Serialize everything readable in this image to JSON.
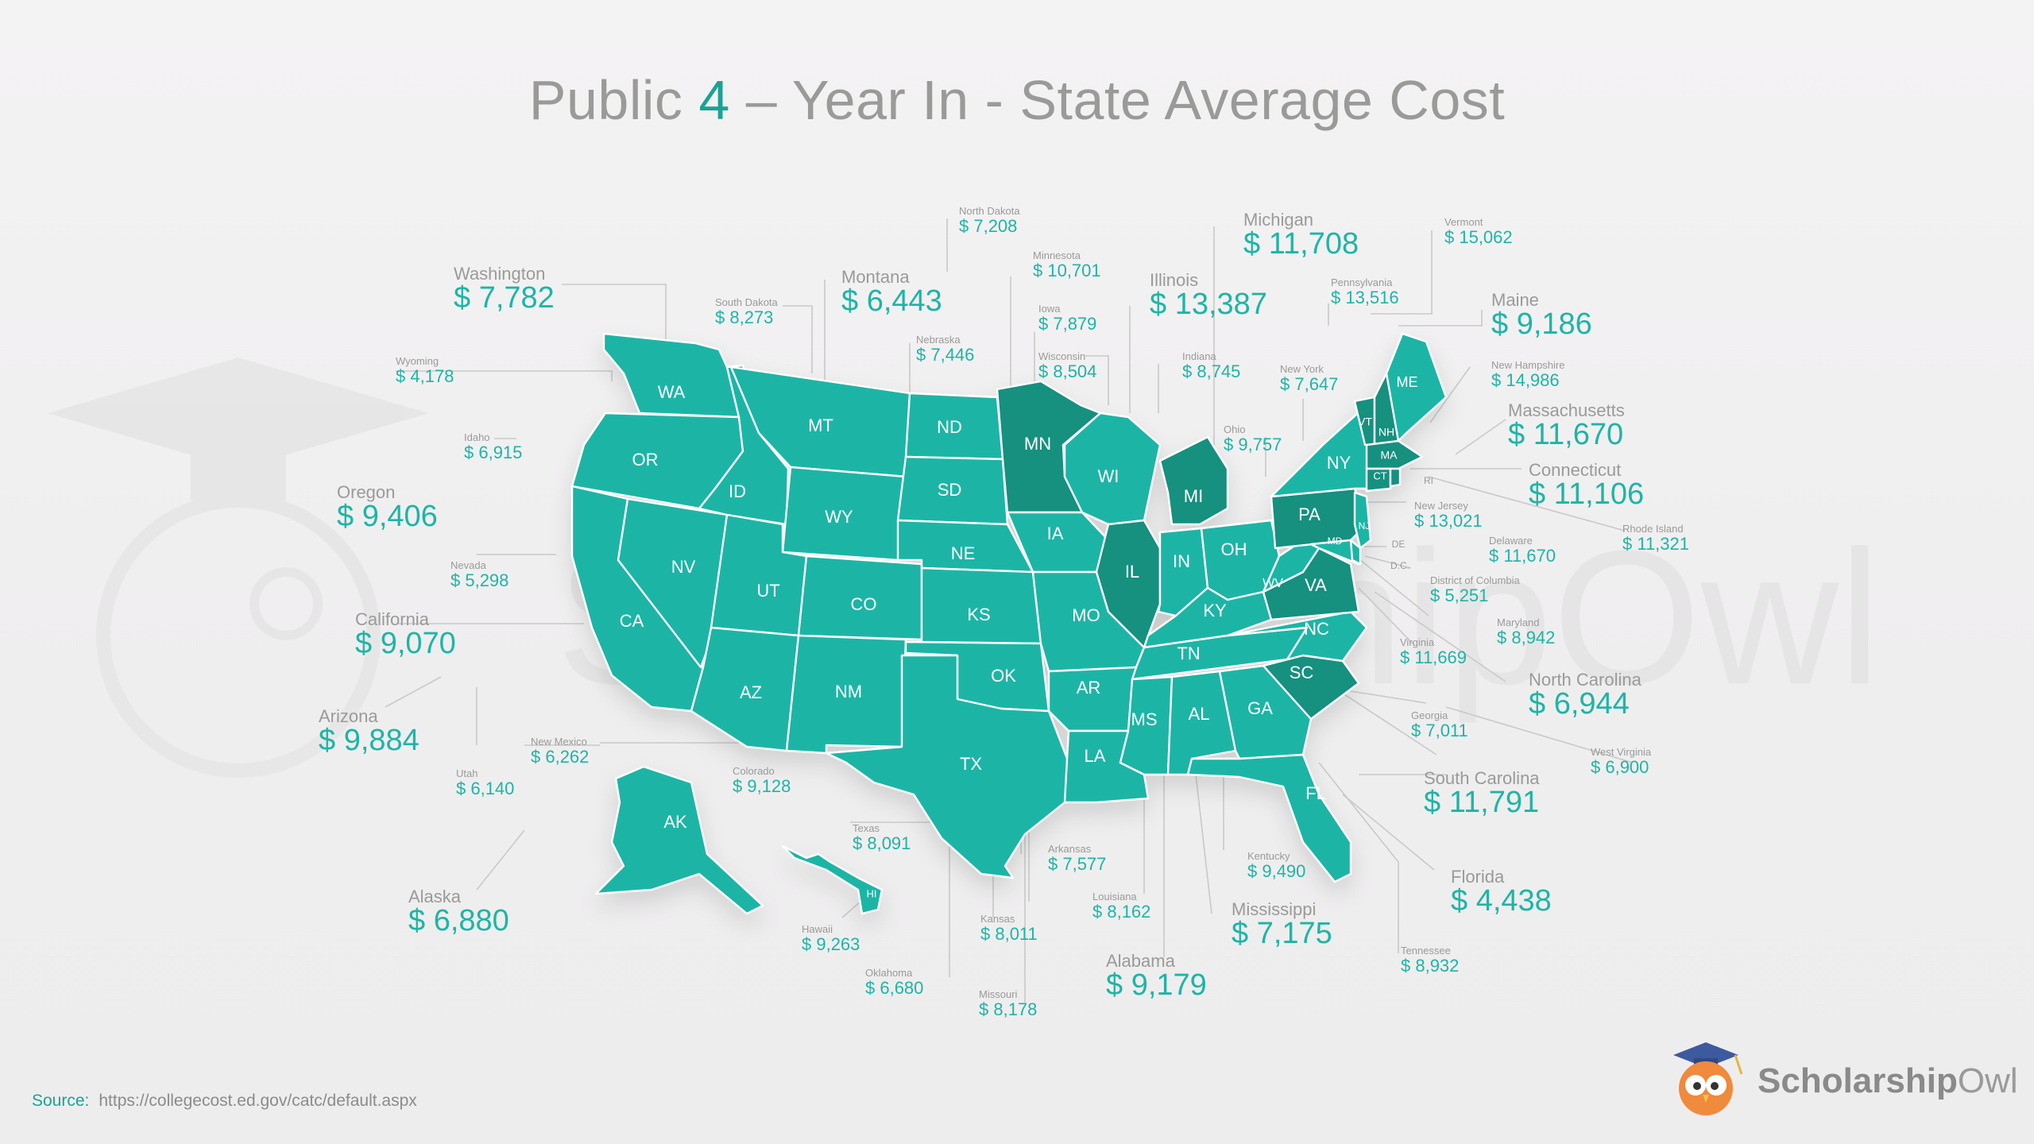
{
  "title": {
    "prefix": "Public ",
    "accent": "4",
    "suffix": " – Year In - State Average Cost"
  },
  "source": {
    "label": "Source:",
    "url": "https://collegecost.ed.gov/catc/default.aspx"
  },
  "brand": {
    "word1": "Scholarship",
    "word2": "Owl"
  },
  "colors": {
    "base": "#1db5a5",
    "dark": "#16907f",
    "text": "#9a9a99",
    "accent": "#1aa394"
  },
  "watermark_text": "ScholarshipOwl",
  "icons": {
    "brand_logo": "owl-mascot-with-graduation-cap",
    "watermark": "owl-graduation-cap-watermark"
  },
  "states": {
    "WA": "WA",
    "OR": "OR",
    "CA": "CA",
    "NV": "NV",
    "ID": "ID",
    "MT": "MT",
    "WY": "WY",
    "UT": "UT",
    "AZ": "AZ",
    "CO": "CO",
    "NM": "NM",
    "ND": "ND",
    "SD": "SD",
    "NE": "NE",
    "KS": "KS",
    "OK": "OK",
    "TX": "TX",
    "MN": "MN",
    "IA": "IA",
    "MO": "MO",
    "AR": "AR",
    "LA": "LA",
    "WI": "WI",
    "IL": "IL",
    "MI": "MI",
    "IN": "IN",
    "OH": "OH",
    "KY": "KY",
    "TN": "TN",
    "MS": "MS",
    "AL": "AL",
    "GA": "GA",
    "FL": "FL",
    "SC": "SC",
    "NC": "NC",
    "VA": "VA",
    "WV": "WV",
    "PA": "PA",
    "NY": "NY",
    "VT": "VT",
    "NH": "NH",
    "ME": "ME",
    "MA": "MA",
    "CT": "CT",
    "RI": "RI",
    "NJ": "NJ",
    "DE": "DE",
    "MD": "MD",
    "DC": "D.C.",
    "AK": "AK",
    "HI": "HI"
  },
  "callouts": [
    {
      "id": "north-dakota",
      "name": "North Dakota",
      "value": "$ 7,208",
      "size": "small"
    },
    {
      "id": "minnesota",
      "name": "Minnesota",
      "value": "$ 10,701",
      "size": "small"
    },
    {
      "id": "michigan",
      "name": "Michigan",
      "value": "$ 11,708",
      "size": "big"
    },
    {
      "id": "vermont",
      "name": "Vermont",
      "value": "$ 15,062",
      "size": "small"
    },
    {
      "id": "washington",
      "name": "Washington",
      "value": "$ 7,782",
      "size": "big"
    },
    {
      "id": "south-dakota",
      "name": "South Dakota",
      "value": "$ 8,273",
      "size": "small"
    },
    {
      "id": "montana",
      "name": "Montana",
      "value": "$ 6,443",
      "size": "big"
    },
    {
      "id": "iowa",
      "name": "Iowa",
      "value": "$ 7,879",
      "size": "small"
    },
    {
      "id": "illinois",
      "name": "Illinois",
      "value": "$ 13,387",
      "size": "big"
    },
    {
      "id": "pennsylvania",
      "name": "Pennsylvania",
      "value": "$ 13,516",
      "size": "small"
    },
    {
      "id": "maine",
      "name": "Maine",
      "value": "$ 9,186",
      "size": "big"
    },
    {
      "id": "nebraska",
      "name": "Nebraska",
      "value": "$ 7,446",
      "size": "small"
    },
    {
      "id": "wyoming",
      "name": "Wyoming",
      "value": "$ 4,178",
      "size": "small"
    },
    {
      "id": "wisconsin",
      "name": "Wisconsin",
      "value": "$ 8,504",
      "size": "small"
    },
    {
      "id": "indiana",
      "name": "Indiana",
      "value": "$ 8,745",
      "size": "small"
    },
    {
      "id": "new-york",
      "name": "New York",
      "value": "$ 7,647",
      "size": "small"
    },
    {
      "id": "new-hampshire",
      "name": "New Hampshire",
      "value": "$ 14,986",
      "size": "small"
    },
    {
      "id": "idaho",
      "name": "Idaho",
      "value": "$ 6,915",
      "size": "small"
    },
    {
      "id": "ohio",
      "name": "Ohio",
      "value": "$ 9,757",
      "size": "small"
    },
    {
      "id": "massachusetts",
      "name": "Massachusetts",
      "value": "$ 11,670",
      "size": "big"
    },
    {
      "id": "connecticut",
      "name": "Connecticut",
      "value": "$ 11,106",
      "size": "big"
    },
    {
      "id": "oregon",
      "name": "Oregon",
      "value": "$ 9,406",
      "size": "big"
    },
    {
      "id": "new-jersey",
      "name": "New Jersey",
      "value": "$ 13,021",
      "size": "small"
    },
    {
      "id": "rhode-island",
      "name": "Rhode Island",
      "value": "$ 11,321",
      "size": "small"
    },
    {
      "id": "delaware",
      "name": "Delaware",
      "value": "$ 11,670",
      "size": "small"
    },
    {
      "id": "nevada",
      "name": "Nevada",
      "value": "$ 5,298",
      "size": "small"
    },
    {
      "id": "district-of-columbia",
      "name": "District of Columbia",
      "value": "$ 5,251",
      "size": "small"
    },
    {
      "id": "california",
      "name": "California",
      "value": "$ 9,070",
      "size": "big"
    },
    {
      "id": "maryland",
      "name": "Maryland",
      "value": "$ 8,942",
      "size": "small"
    },
    {
      "id": "virginia",
      "name": "Virginia",
      "value": "$ 11,669",
      "size": "small"
    },
    {
      "id": "north-carolina",
      "name": "North Carolina",
      "value": "$ 6,944",
      "size": "big"
    },
    {
      "id": "arizona",
      "name": "Arizona",
      "value": "$ 9,884",
      "size": "big"
    },
    {
      "id": "georgia",
      "name": "Georgia",
      "value": "$ 7,011",
      "size": "small"
    },
    {
      "id": "new-mexico",
      "name": "New Mexico",
      "value": "$ 6,262",
      "size": "small"
    },
    {
      "id": "west-virginia",
      "name": "West Virginia",
      "value": "$ 6,900",
      "size": "small"
    },
    {
      "id": "utah",
      "name": "Utah",
      "value": "$ 6,140",
      "size": "small"
    },
    {
      "id": "colorado",
      "name": "Colorado",
      "value": "$ 9,128",
      "size": "small"
    },
    {
      "id": "south-carolina",
      "name": "South Carolina",
      "value": "$ 11,791",
      "size": "big"
    },
    {
      "id": "texas",
      "name": "Texas",
      "value": "$ 8,091",
      "size": "small"
    },
    {
      "id": "arkansas",
      "name": "Arkansas",
      "value": "$ 7,577",
      "size": "small"
    },
    {
      "id": "kentucky",
      "name": "Kentucky",
      "value": "$ 9,490",
      "size": "small"
    },
    {
      "id": "florida",
      "name": "Florida",
      "value": "$ 4,438",
      "size": "big"
    },
    {
      "id": "alaska",
      "name": "Alaska",
      "value": "$ 6,880",
      "size": "big"
    },
    {
      "id": "louisiana",
      "name": "Louisiana",
      "value": "$ 8,162",
      "size": "small"
    },
    {
      "id": "mississippi",
      "name": "Mississippi",
      "value": "$ 7,175",
      "size": "big"
    },
    {
      "id": "kansas",
      "name": "Kansas",
      "value": "$ 8,011",
      "size": "small"
    },
    {
      "id": "hawaii",
      "name": "Hawaii",
      "value": "$ 9,263",
      "size": "small"
    },
    {
      "id": "tennessee",
      "name": "Tennessee",
      "value": "$ 8,932",
      "size": "small"
    },
    {
      "id": "alabama",
      "name": "Alabama",
      "value": "$ 9,179",
      "size": "big"
    },
    {
      "id": "oklahoma",
      "name": "Oklahoma",
      "value": "$ 6,680",
      "size": "small"
    },
    {
      "id": "missouri",
      "name": "Missouri",
      "value": "$ 8,178",
      "size": "small"
    }
  ]
}
